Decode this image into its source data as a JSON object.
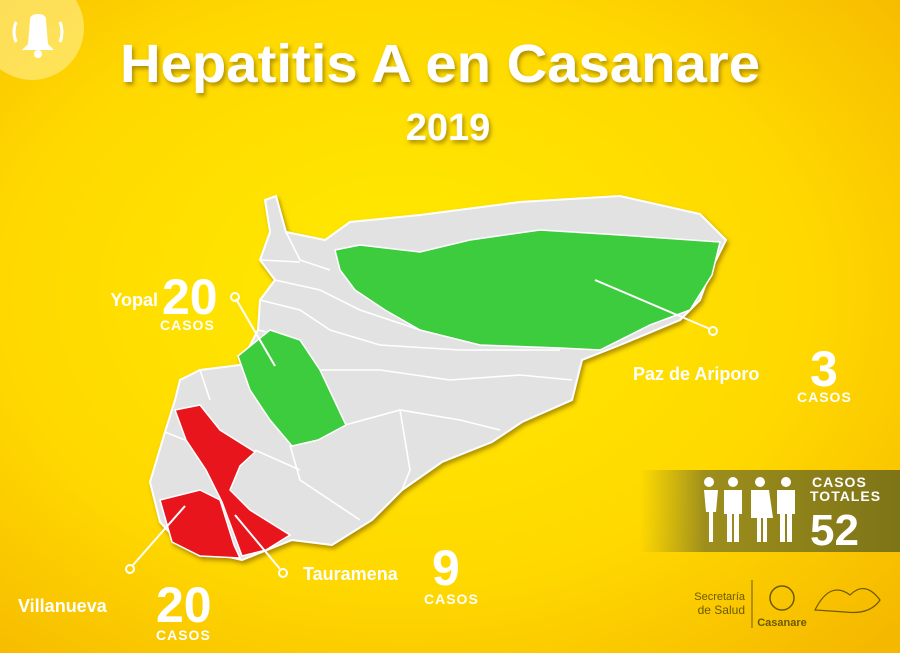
{
  "header": {
    "title": "Hepatitis A en Casanare",
    "year": "2019"
  },
  "municipalities": [
    {
      "name": "Yopal",
      "cases": 20,
      "unit": "CASOS"
    },
    {
      "name": "Paz de Ariporo",
      "cases": 3,
      "unit": "CASOS"
    },
    {
      "name": "Villanueva",
      "cases": 20,
      "unit": "CASOS"
    },
    {
      "name": "Tauramena",
      "cases": 9,
      "unit": "CASOS"
    }
  ],
  "total": {
    "label_line1": "CASOS",
    "label_line2": "TOTALES",
    "cases": 52
  },
  "footer": {
    "secretaria_line1": "Secretaría",
    "secretaria_line2": "de Salud",
    "brand": "Casanare"
  }
}
